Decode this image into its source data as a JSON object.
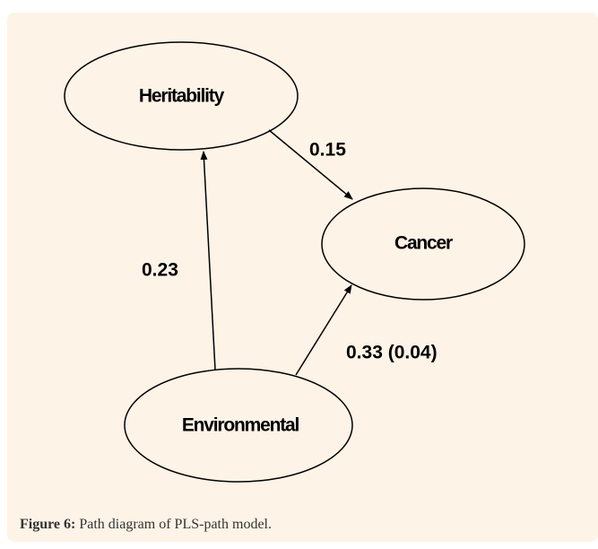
{
  "nodes": [
    {
      "label": "Heritability"
    },
    {
      "label": "Cancer"
    },
    {
      "label": "Environmental"
    }
  ],
  "edges": [
    {
      "from": "Heritability",
      "to": "Cancer",
      "label": "0.15"
    },
    {
      "from": "Environmental",
      "to": "Heritability",
      "label": "0.23"
    },
    {
      "from": "Environmental",
      "to": "Cancer",
      "label": "0.33 (0.04)"
    }
  ],
  "caption": {
    "label": "Figure 6:",
    "text": "Path diagram of PLS-path model."
  }
}
